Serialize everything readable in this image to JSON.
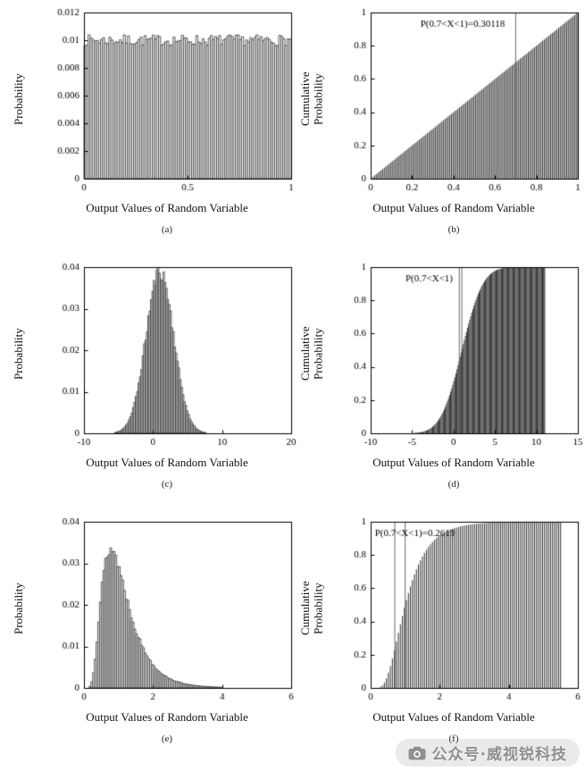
{
  "page": {
    "background": "#ffffff"
  },
  "watermark": {
    "icon": "camera-icon",
    "text": "公众号·威视锐科技",
    "color": "#8f8f8f"
  },
  "chart_data": [
    {
      "id": "a",
      "type": "bar",
      "sublabel": "(a)",
      "xlabel": "Output Values of Random Variable",
      "ylabel": "Probability",
      "xlim": [
        0,
        1
      ],
      "ylim": [
        0,
        0.012
      ],
      "xticks": [
        0,
        0.5,
        1
      ],
      "xtick_labels": [
        "0",
        "0.5",
        "1"
      ],
      "yticks": [
        0,
        0.002,
        0.004,
        0.006,
        0.008,
        0.01,
        0.012
      ],
      "ytick_labels": [
        "0",
        "0.002",
        "0.004",
        "0.006",
        "0.008",
        "0.01",
        "0.012"
      ],
      "grid": false,
      "legend": null,
      "gen": {
        "kind": "hist",
        "dist": "uniform",
        "start": 0,
        "end": 1,
        "n": 100,
        "base": 0.01,
        "amp": 0.0004,
        "seed": 7
      },
      "summary": "Uniform distribution histogram, ~100 bins each near probability 0.01"
    },
    {
      "id": "b",
      "type": "bar",
      "sublabel": "(b)",
      "xlabel": "Output Values of Random Variable",
      "ylabel": "Cumulative\nProbability",
      "xlim": [
        0,
        1
      ],
      "ylim": [
        0,
        1
      ],
      "xticks": [
        0,
        0.2,
        0.4,
        0.6,
        0.8,
        1
      ],
      "xtick_labels": [
        "0",
        "0.2",
        "0.4",
        "0.6",
        "0.8",
        "1"
      ],
      "yticks": [
        0,
        0.2,
        0.4,
        0.6,
        0.8,
        1
      ],
      "ytick_labels": [
        "0",
        "0.2",
        "0.4",
        "0.6",
        "0.8",
        "1"
      ],
      "grid": false,
      "legend": null,
      "gen": {
        "kind": "cdf",
        "dist": "uniform",
        "start": 0.004,
        "end": 1,
        "n": 130,
        "seed": 3
      },
      "annotation": {
        "text": "P(0.7<X<1)=0.30118",
        "x": 0.24,
        "y": 0.93,
        "lines_x": [
          0.7
        ]
      },
      "summary": "Uniform CDF, straight line from (0,0) to (1,1) drawn as dense stems"
    },
    {
      "id": "c",
      "type": "bar",
      "sublabel": "(c)",
      "xlabel": "Output Values of Random Variable",
      "ylabel": "Probability",
      "xlim": [
        -10,
        20
      ],
      "ylim": [
        0,
        0.04
      ],
      "xticks": [
        -10,
        0,
        10,
        20
      ],
      "xtick_labels": [
        "-10",
        "0",
        "10",
        "20"
      ],
      "yticks": [
        0,
        0.01,
        0.02,
        0.03,
        0.04
      ],
      "ytick_labels": [
        "0",
        "0.01",
        "0.02",
        "0.03",
        "0.04"
      ],
      "grid": false,
      "legend": null,
      "gen": {
        "kind": "hist",
        "dist": "normal",
        "mu": 1,
        "sigma": 2,
        "peak": 0.039,
        "jitter": 0.05,
        "start": -8,
        "end": 10.5,
        "n": 92,
        "seed": 11
      },
      "summary": "Gaussian histogram centered near 1, peak probability ~0.039"
    },
    {
      "id": "d",
      "type": "bar",
      "sublabel": "(d)",
      "xlabel": "Output Values of Random Variable",
      "ylabel": "Cumulative\nProbability",
      "xlim": [
        -10,
        15
      ],
      "ylim": [
        0,
        1
      ],
      "xticks": [
        -10,
        -5,
        0,
        5,
        10,
        15
      ],
      "xtick_labels": [
        "-10",
        "-5",
        "0",
        "5",
        "10",
        "15"
      ],
      "yticks": [
        0,
        0.2,
        0.4,
        0.6,
        0.8,
        1
      ],
      "ytick_labels": [
        "0",
        "0.2",
        "0.4",
        "0.6",
        "0.8",
        "1"
      ],
      "grid": false,
      "legend": null,
      "gen": {
        "kind": "cdf",
        "dist": "normal",
        "mu": 1,
        "sigma": 2,
        "start": -8,
        "end": 11,
        "n": 150,
        "seed": 5
      },
      "annotation": {
        "text": "P(0.7<X<1)",
        "x": -5.8,
        "y": 0.93,
        "lines_x": [
          0.7,
          1
        ]
      },
      "summary": "Gaussian CDF sigmoid centered near 1, saturating to 1 by x≈7, stems end at x≈11"
    },
    {
      "id": "e",
      "type": "bar",
      "sublabel": "(e)",
      "xlabel": "Output Values of Random Variable",
      "ylabel": "Probability",
      "xlim": [
        0,
        6
      ],
      "ylim": [
        0,
        0.04
      ],
      "xticks": [
        0,
        2,
        4,
        6
      ],
      "xtick_labels": [
        "0",
        "2",
        "4",
        "6"
      ],
      "yticks": [
        0,
        0.01,
        0.02,
        0.03,
        0.04
      ],
      "ytick_labels": [
        "0",
        "0.01",
        "0.02",
        "0.03",
        "0.04"
      ],
      "grid": false,
      "legend": null,
      "gen": {
        "kind": "hist",
        "dist": "lognormal",
        "mu": 0,
        "sigma": 0.5,
        "peak": 0.0335,
        "jitter": 0.05,
        "start": 0.05,
        "end": 5.6,
        "n": 111,
        "seed": 13
      },
      "summary": "Right-skewed lognormal histogram, peak ~0.033 near x≈0.9, tail to x≈5"
    },
    {
      "id": "f",
      "type": "bar",
      "sublabel": "(f)",
      "xlabel": "Output Values of Random Variable",
      "ylabel": "Cumulative\nProbability",
      "xlim": [
        0,
        6
      ],
      "ylim": [
        0,
        1
      ],
      "xticks": [
        0,
        2,
        4,
        6
      ],
      "xtick_labels": [
        "0",
        "2",
        "4",
        "6"
      ],
      "yticks": [
        0,
        0.2,
        0.4,
        0.6,
        0.8,
        1
      ],
      "ytick_labels": [
        "0",
        "0.2",
        "0.4",
        "0.6",
        "0.8",
        "1"
      ],
      "grid": false,
      "legend": null,
      "gen": {
        "kind": "cdf",
        "dist": "lognormal",
        "mu": 0,
        "sigma": 0.5,
        "start": 0.05,
        "end": 5.5,
        "n": 95,
        "seed": 17
      },
      "annotation": {
        "text": "P(0.7<X<1)=0.2619",
        "x": 0.12,
        "y": 0.93,
        "lines_x": [
          0.7,
          1
        ]
      },
      "summary": "Lognormal CDF rising steeply from x≈0.3, near 1 by x≈3, stems end at x≈5.5"
    }
  ]
}
